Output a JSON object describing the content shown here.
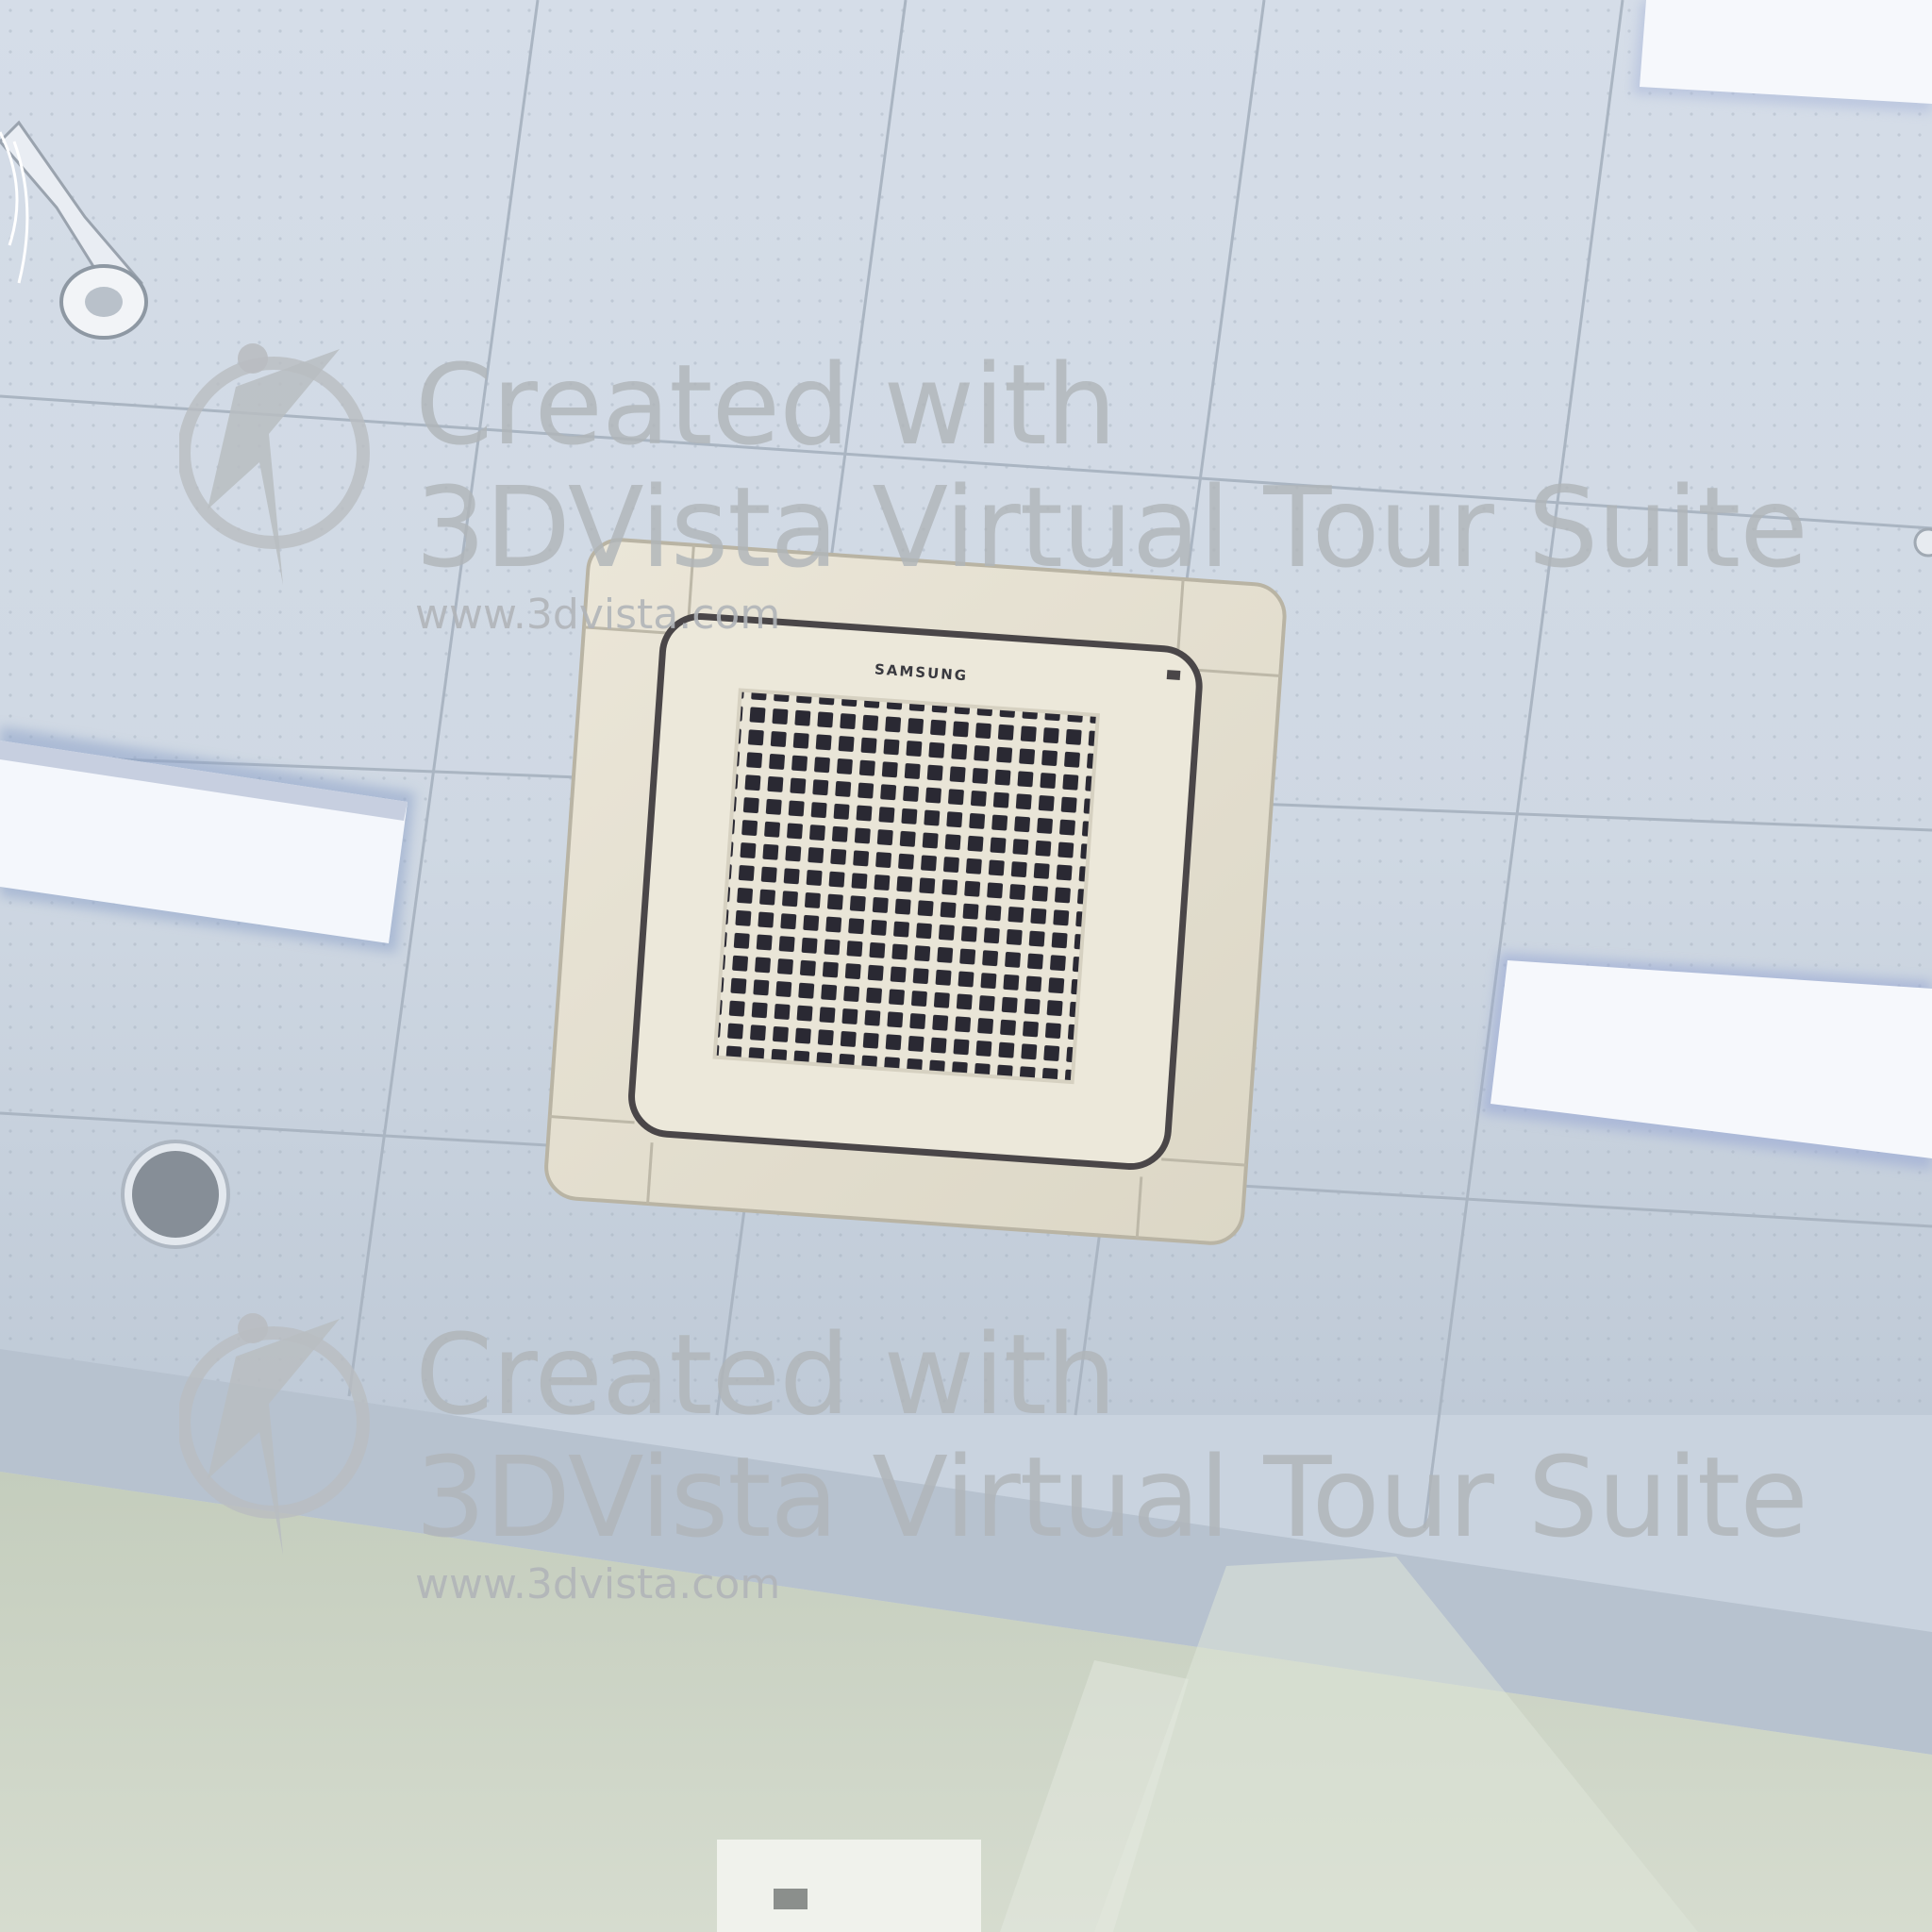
{
  "scene": {
    "subject": "ceiling cassette air conditioner",
    "brand_label": "SAMSUNG"
  },
  "watermark": {
    "line1": "Created with",
    "line2": "3DVista Virtual Tour Suite",
    "url": "www.3dvista.com"
  },
  "colors": {
    "ceiling": "#d7dfe9",
    "ceiling_shadow": "#bcc7d4",
    "light_panel": "#f4f7fc",
    "ac_body": "#e6e1d2",
    "ac_frame": "#4a4648",
    "grille": "#2b2a33",
    "wall": "#c8d0bf"
  }
}
